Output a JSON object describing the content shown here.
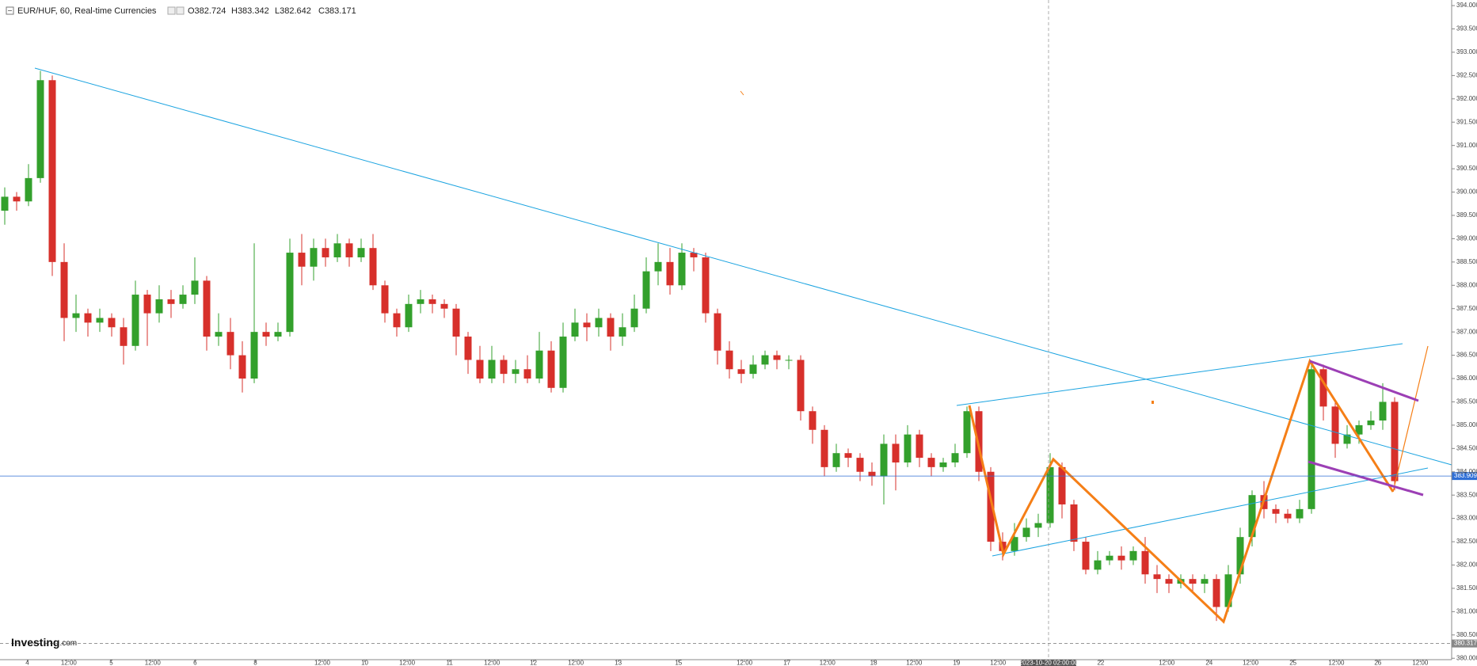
{
  "header": {
    "symbol": "EUR/HUF, 60, Real-time Currencies",
    "open": "O382.724",
    "high": "H383.342",
    "low": "L382.642",
    "close": "C383.171"
  },
  "logo": {
    "brand": "Investing",
    "suffix": ".com"
  },
  "crosshair_label": "2023-10-20 02:00:00",
  "chart_data": {
    "type": "candlestick",
    "up_color": "#33a02c",
    "down_color": "#d7302b",
    "ylim": [
      379.97,
      394.12
    ],
    "yticks": [
      {
        "value": 380,
        "label": "380.000"
      },
      {
        "value": 380.5,
        "label": "380.500"
      },
      {
        "value": 381,
        "label": "381.000"
      },
      {
        "value": 381.5,
        "label": "381.500"
      },
      {
        "value": 382,
        "label": "382.000"
      },
      {
        "value": 382.5,
        "label": "382.500"
      },
      {
        "value": 383,
        "label": "383.000"
      },
      {
        "value": 383.5,
        "label": "383.500"
      },
      {
        "value": 384,
        "label": "384.000"
      },
      {
        "value": 384.5,
        "label": "384.500"
      },
      {
        "value": 385,
        "label": "385.000"
      },
      {
        "value": 385.5,
        "label": "385.500"
      },
      {
        "value": 386,
        "label": "386.000"
      },
      {
        "value": 386.5,
        "label": "386.500"
      },
      {
        "value": 387,
        "label": "387.000"
      },
      {
        "value": 387.5,
        "label": "387.500"
      },
      {
        "value": 388,
        "label": "388.000"
      },
      {
        "value": 388.5,
        "label": "388.500"
      },
      {
        "value": 389,
        "label": "389.000"
      },
      {
        "value": 389.5,
        "label": "389.500"
      },
      {
        "value": 390,
        "label": "390.000"
      },
      {
        "value": 390.5,
        "label": "390.500"
      },
      {
        "value": 391,
        "label": "391.000"
      },
      {
        "value": 391.5,
        "label": "391.500"
      },
      {
        "value": 392,
        "label": "392.000"
      },
      {
        "value": 392.5,
        "label": "392.500"
      },
      {
        "value": 393,
        "label": "393.000"
      },
      {
        "value": 393.5,
        "label": "393.500"
      },
      {
        "value": 394,
        "label": "394.000"
      }
    ],
    "x_labels": [
      "4",
      "12:00",
      "5",
      "12:00",
      "6",
      "8",
      "12:00",
      "10",
      "12:00",
      "11",
      "12:00",
      "12",
      "12:00",
      "13",
      "15",
      "12:00",
      "17",
      "12:00",
      "18",
      "12:00",
      "19",
      "12:00",
      "22",
      "12:00",
      "24",
      "12:00",
      "25",
      "12:00",
      "26",
      "12:00"
    ],
    "price_lines": [
      {
        "value": 383.909,
        "color": "#2f6fd6",
        "style": "solid"
      },
      {
        "value": 380.317,
        "color": "#888888",
        "style": "dashed"
      }
    ],
    "candles": [
      [
        389.6,
        390.1,
        389.3,
        389.9
      ],
      [
        389.9,
        390.0,
        389.6,
        389.8
      ],
      [
        389.8,
        390.6,
        389.7,
        390.3
      ],
      [
        390.3,
        392.6,
        390.2,
        392.4
      ],
      [
        392.4,
        392.5,
        388.2,
        388.5
      ],
      [
        388.5,
        388.9,
        386.8,
        387.3
      ],
      [
        387.3,
        387.8,
        387.0,
        387.4
      ],
      [
        387.4,
        387.5,
        386.9,
        387.2
      ],
      [
        387.2,
        387.5,
        387.0,
        387.3
      ],
      [
        387.3,
        387.4,
        386.9,
        387.1
      ],
      [
        387.1,
        387.3,
        386.3,
        386.7
      ],
      [
        386.7,
        388.1,
        386.6,
        387.8
      ],
      [
        387.8,
        387.9,
        386.7,
        387.4
      ],
      [
        387.4,
        388.0,
        387.2,
        387.7
      ],
      [
        387.7,
        387.9,
        387.3,
        387.6
      ],
      [
        387.6,
        388.0,
        387.5,
        387.8
      ],
      [
        387.8,
        388.6,
        387.6,
        388.1
      ],
      [
        388.1,
        388.2,
        386.6,
        386.9
      ],
      [
        386.9,
        387.4,
        386.7,
        387.0
      ],
      [
        387.0,
        387.3,
        386.2,
        386.5
      ],
      [
        386.5,
        386.8,
        385.7,
        386.0
      ],
      [
        386.0,
        388.9,
        385.9,
        387.0
      ],
      [
        387.0,
        387.2,
        386.7,
        386.9
      ],
      [
        386.9,
        387.2,
        386.8,
        387.0
      ],
      [
        387.0,
        389.0,
        386.9,
        388.7
      ],
      [
        388.7,
        389.1,
        388.0,
        388.4
      ],
      [
        388.4,
        389.0,
        388.1,
        388.8
      ],
      [
        388.8,
        389.0,
        388.4,
        388.6
      ],
      [
        388.6,
        389.1,
        388.5,
        388.9
      ],
      [
        388.9,
        389.0,
        388.4,
        388.6
      ],
      [
        388.6,
        389.0,
        388.5,
        388.8
      ],
      [
        388.8,
        389.1,
        387.9,
        388.0
      ],
      [
        388.0,
        388.1,
        387.2,
        387.4
      ],
      [
        387.4,
        387.5,
        386.9,
        387.1
      ],
      [
        387.1,
        387.8,
        387.0,
        387.6
      ],
      [
        387.6,
        387.9,
        387.4,
        387.7
      ],
      [
        387.7,
        387.8,
        387.4,
        387.6
      ],
      [
        387.6,
        387.7,
        387.3,
        387.5
      ],
      [
        387.5,
        387.6,
        386.5,
        386.9
      ],
      [
        386.9,
        387.0,
        386.1,
        386.4
      ],
      [
        386.4,
        386.7,
        385.9,
        386.0
      ],
      [
        386.0,
        386.7,
        385.9,
        386.4
      ],
      [
        386.4,
        386.5,
        385.9,
        386.1
      ],
      [
        386.1,
        386.4,
        385.9,
        386.2
      ],
      [
        386.2,
        386.5,
        385.9,
        386.0
      ],
      [
        386.0,
        387.0,
        385.9,
        386.6
      ],
      [
        386.6,
        386.8,
        385.7,
        385.8
      ],
      [
        385.8,
        387.2,
        385.7,
        386.9
      ],
      [
        386.9,
        387.5,
        386.8,
        387.2
      ],
      [
        387.2,
        387.4,
        386.8,
        387.1
      ],
      [
        387.1,
        387.5,
        386.9,
        387.3
      ],
      [
        387.3,
        387.4,
        386.6,
        386.9
      ],
      [
        386.9,
        387.4,
        386.7,
        387.1
      ],
      [
        387.1,
        387.8,
        387.0,
        387.5
      ],
      [
        387.5,
        388.6,
        387.4,
        388.3
      ],
      [
        388.3,
        388.9,
        388.0,
        388.5
      ],
      [
        388.5,
        388.8,
        387.8,
        388.0
      ],
      [
        388.0,
        388.9,
        387.9,
        388.7
      ],
      [
        388.7,
        388.8,
        388.3,
        388.6
      ],
      [
        388.6,
        388.7,
        387.2,
        387.4
      ],
      [
        387.4,
        387.5,
        386.3,
        386.6
      ],
      [
        386.6,
        386.8,
        386.0,
        386.2
      ],
      [
        386.2,
        386.4,
        385.9,
        386.1
      ],
      [
        386.1,
        386.5,
        386.0,
        386.3
      ],
      [
        386.3,
        386.6,
        386.2,
        386.5
      ],
      [
        386.5,
        386.6,
        386.2,
        386.4
      ],
      [
        386.4,
        386.5,
        386.2,
        386.4
      ],
      [
        386.4,
        386.5,
        385.1,
        385.3
      ],
      [
        385.3,
        385.4,
        384.6,
        384.9
      ],
      [
        384.9,
        385.0,
        383.9,
        384.1
      ],
      [
        384.1,
        384.6,
        384.0,
        384.4
      ],
      [
        384.4,
        384.5,
        384.1,
        384.3
      ],
      [
        384.3,
        384.4,
        383.8,
        384.0
      ],
      [
        384.0,
        384.2,
        383.7,
        383.9
      ],
      [
        383.9,
        384.8,
        383.3,
        384.6
      ],
      [
        384.6,
        384.8,
        383.6,
        384.2
      ],
      [
        384.2,
        385.0,
        384.1,
        384.8
      ],
      [
        384.8,
        384.9,
        384.1,
        384.3
      ],
      [
        384.3,
        384.4,
        383.9,
        384.1
      ],
      [
        384.1,
        384.3,
        384.0,
        384.2
      ],
      [
        384.2,
        384.6,
        384.1,
        384.4
      ],
      [
        384.4,
        385.4,
        384.3,
        385.3
      ],
      [
        385.3,
        385.4,
        383.8,
        384.0
      ],
      [
        384.0,
        384.1,
        382.3,
        382.5
      ],
      [
        382.5,
        382.7,
        382.1,
        382.3
      ],
      [
        382.3,
        382.9,
        382.2,
        382.6
      ],
      [
        382.6,
        383.0,
        382.5,
        382.8
      ],
      [
        382.8,
        383.1,
        382.6,
        382.9
      ],
      [
        382.9,
        384.4,
        382.8,
        384.1
      ],
      [
        384.1,
        384.2,
        383.0,
        383.3
      ],
      [
        383.3,
        383.4,
        382.3,
        382.5
      ],
      [
        382.5,
        382.6,
        381.8,
        381.9
      ],
      [
        381.9,
        382.3,
        381.8,
        382.1
      ],
      [
        382.1,
        382.3,
        382.0,
        382.2
      ],
      [
        382.2,
        382.4,
        381.9,
        382.1
      ],
      [
        382.1,
        382.4,
        382.0,
        382.3
      ],
      [
        382.3,
        382.6,
        381.6,
        381.8
      ],
      [
        381.8,
        382.0,
        381.4,
        381.7
      ],
      [
        381.7,
        381.8,
        381.4,
        381.6
      ],
      [
        381.6,
        381.8,
        381.5,
        381.7
      ],
      [
        381.7,
        381.8,
        381.4,
        381.6
      ],
      [
        381.6,
        381.8,
        381.4,
        381.7
      ],
      [
        381.7,
        381.8,
        380.8,
        381.1
      ],
      [
        381.1,
        382.0,
        381.0,
        381.8
      ],
      [
        381.8,
        382.8,
        381.6,
        382.6
      ],
      [
        382.6,
        383.6,
        382.4,
        383.5
      ],
      [
        383.5,
        383.8,
        383.0,
        383.2
      ],
      [
        383.2,
        383.3,
        382.9,
        383.1
      ],
      [
        383.1,
        383.2,
        382.9,
        383.0
      ],
      [
        383.0,
        383.4,
        382.9,
        383.2
      ],
      [
        383.2,
        386.3,
        383.1,
        386.2
      ],
      [
        386.2,
        386.3,
        385.1,
        385.4
      ],
      [
        385.4,
        385.5,
        384.3,
        384.6
      ],
      [
        384.6,
        385.0,
        384.5,
        384.8
      ],
      [
        384.8,
        385.1,
        384.6,
        385.0
      ],
      [
        385.0,
        385.3,
        384.9,
        385.1
      ],
      [
        385.1,
        385.9,
        384.9,
        385.5
      ],
      [
        385.5,
        385.6,
        383.6,
        383.8
      ]
    ]
  }
}
